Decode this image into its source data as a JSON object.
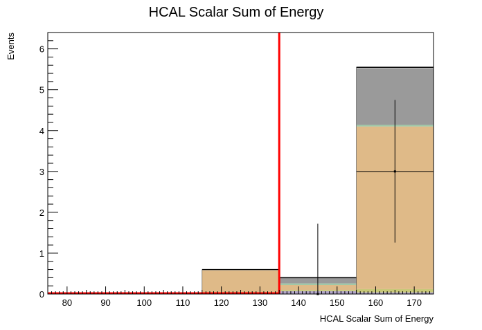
{
  "chart_data": {
    "type": "bar",
    "title": "HCAL Scalar Sum of Energy",
    "xlabel": "HCAL Scalar Sum of Energy",
    "ylabel": "Events",
    "xlim": [
      75,
      175
    ],
    "ylim": [
      0,
      6.4
    ],
    "x_ticks": [
      80,
      90,
      100,
      110,
      120,
      130,
      140,
      150,
      160,
      170
    ],
    "y_ticks": [
      0,
      1,
      2,
      3,
      4,
      5,
      6
    ],
    "bins": [
      {
        "low": 115,
        "high": 135
      },
      {
        "low": 135,
        "high": 155
      },
      {
        "low": 155,
        "high": 175
      }
    ],
    "stack": [
      {
        "color": "#b0a4c8",
        "values": [
          0.0,
          0.07,
          0.04
        ]
      },
      {
        "color": "#c8c878",
        "values": [
          0.0,
          0.03,
          0.08
        ]
      },
      {
        "color": "#dfba88",
        "values": [
          0.58,
          0.12,
          3.98
        ]
      },
      {
        "color": "#a0c8a8",
        "values": [
          0.0,
          0.04,
          0.04
        ]
      },
      {
        "color": "#9a9a9a",
        "values": [
          0.0,
          0.14,
          1.39
        ]
      }
    ],
    "stack_total": [
      0.6,
      0.4,
      5.55
    ],
    "data_points": [
      {
        "x": 145,
        "y": 0.0,
        "err_up": 1.72
      },
      {
        "x": 165,
        "y": 3.0,
        "err_low": 1.26,
        "err_up": 4.75
      }
    ],
    "cut_line": {
      "x": 135,
      "color": "#ff0000"
    },
    "grid": false,
    "legend": "none"
  }
}
